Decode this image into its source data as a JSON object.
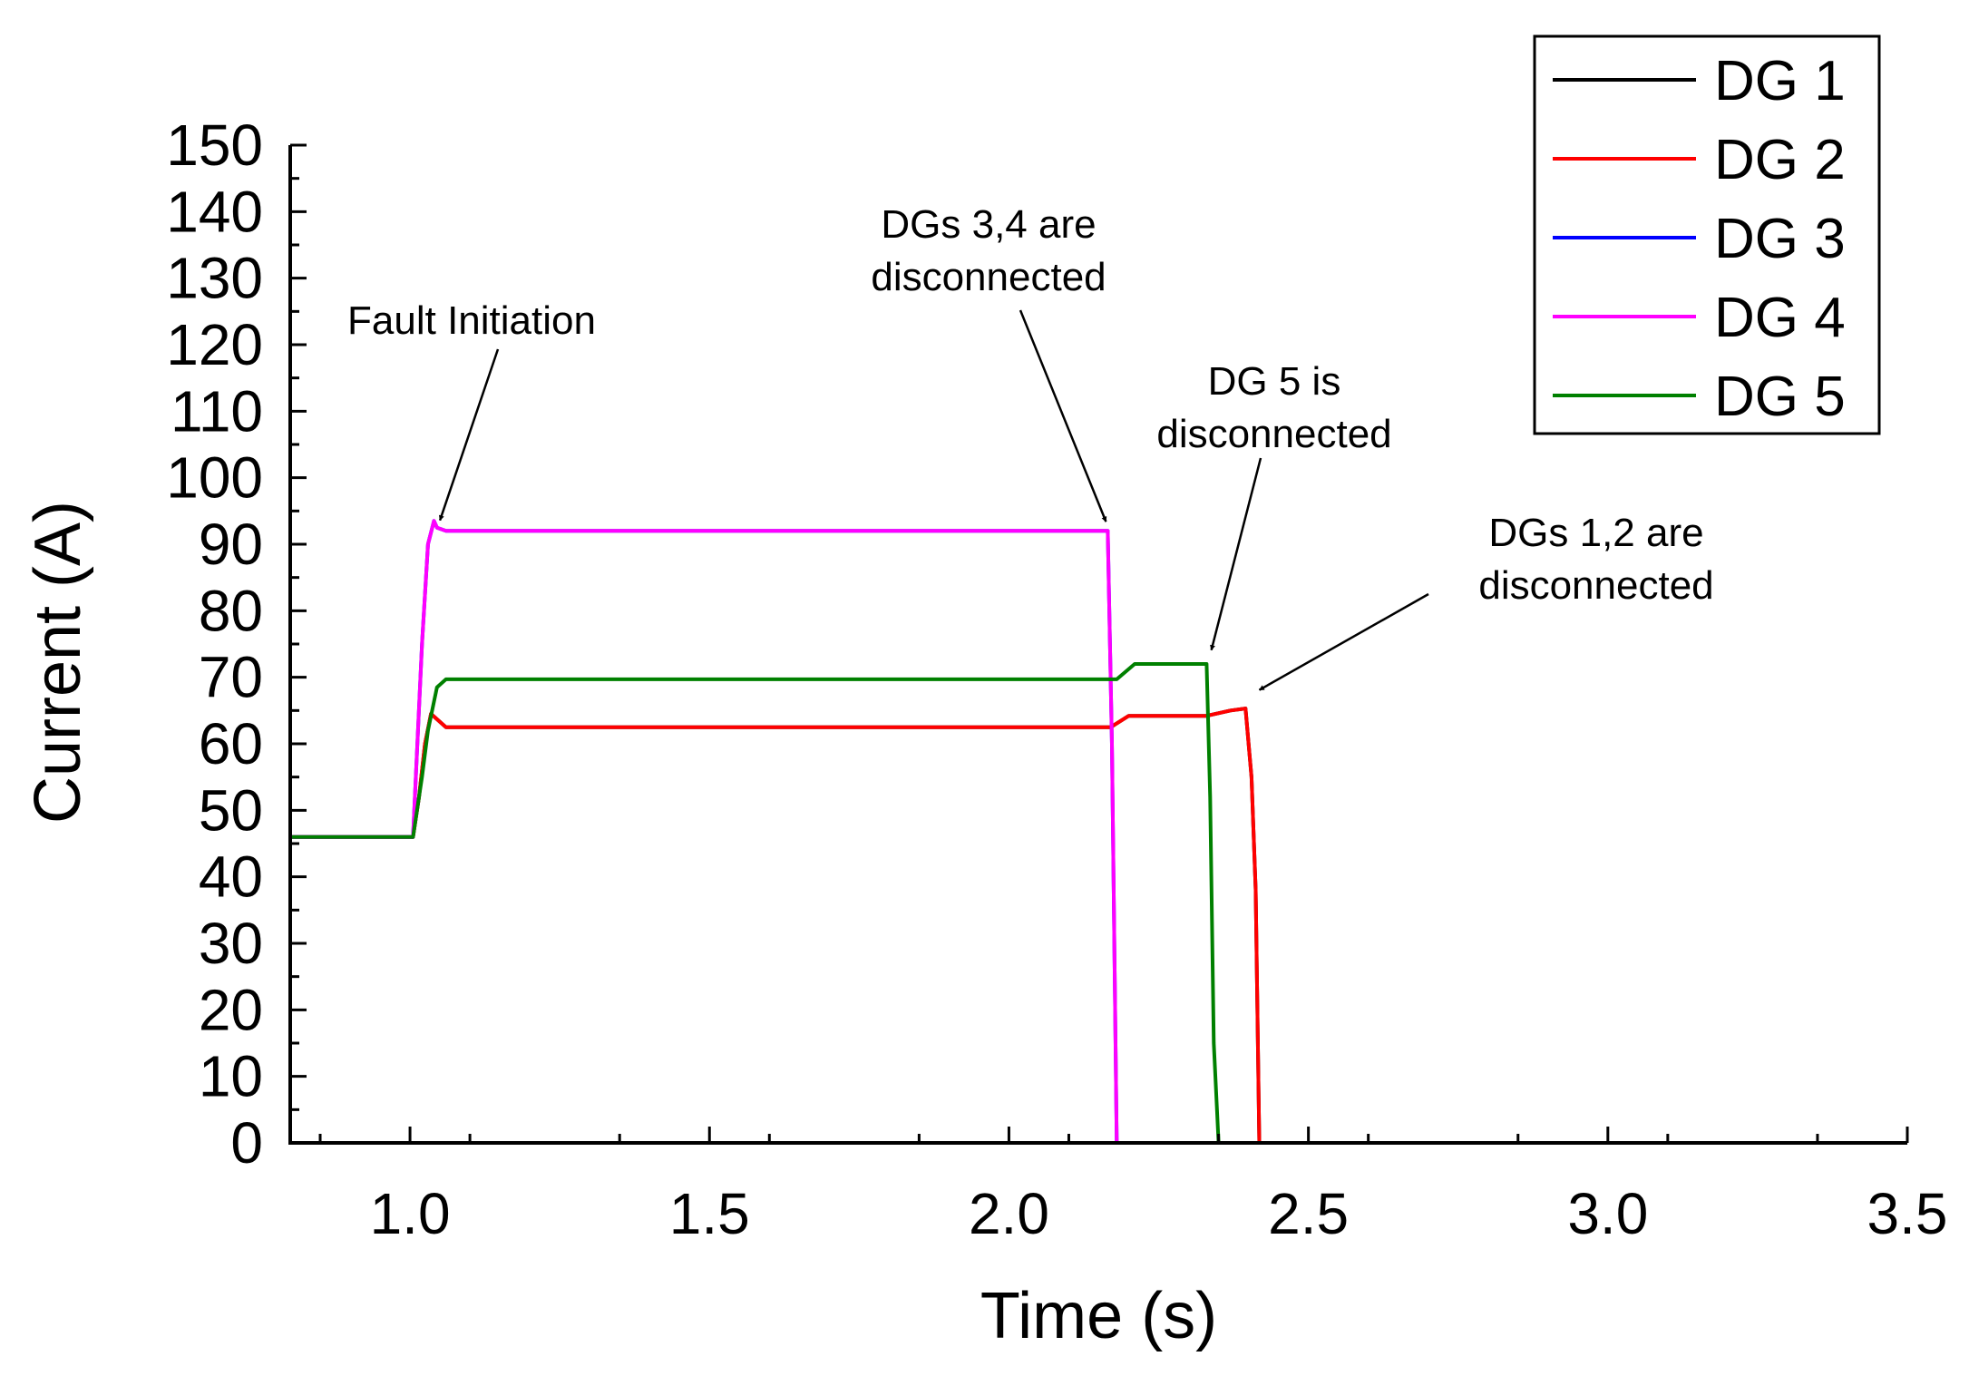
{
  "chart_data": {
    "type": "line",
    "title": "",
    "xlabel": "Time (s)",
    "ylabel": "Current (A)",
    "xlim": [
      0.8,
      3.5
    ],
    "ylim": [
      0,
      150
    ],
    "x_ticks": [
      1.0,
      1.5,
      2.0,
      2.5,
      3.0,
      3.5
    ],
    "x_tick_labels": [
      "1.0",
      "1.5",
      "2.0",
      "2.5",
      "3.0",
      "3.5"
    ],
    "y_ticks": [
      0,
      10,
      20,
      30,
      40,
      50,
      60,
      70,
      80,
      90,
      100,
      110,
      120,
      130,
      140,
      150
    ],
    "y_tick_labels": [
      "0",
      "10",
      "20",
      "30",
      "40",
      "50",
      "60",
      "70",
      "80",
      "90",
      "100",
      "110",
      "120",
      "130",
      "140",
      "150"
    ],
    "grid": false,
    "legend_position": "top-right",
    "series": [
      {
        "name": "DG 1",
        "color": "#000000",
        "x": [
          0.8,
          1.005,
          1.015,
          1.025,
          1.035,
          1.06,
          2.17,
          2.2,
          2.33,
          2.37,
          2.395,
          2.405,
          2.412,
          2.418,
          2.42
        ],
        "y": [
          46,
          46,
          52,
          60,
          64.5,
          62.5,
          62.5,
          64.2,
          64.2,
          65,
          65.3,
          55,
          38,
          0,
          0
        ]
      },
      {
        "name": "DG 2",
        "color": "#ff0000",
        "x": [
          0.8,
          1.005,
          1.015,
          1.025,
          1.035,
          1.06,
          2.17,
          2.2,
          2.33,
          2.37,
          2.395,
          2.405,
          2.412,
          2.418,
          2.6
        ],
        "y": [
          46,
          46,
          52,
          60,
          64.5,
          62.5,
          62.5,
          64.2,
          64.2,
          65,
          65.3,
          55,
          38,
          0,
          0
        ]
      },
      {
        "name": "DG 3",
        "color": "#0000ff",
        "x": [
          0.8,
          1.005,
          1.02,
          1.03,
          1.04,
          1.045,
          1.06,
          2.165,
          2.172,
          2.18,
          2.6
        ],
        "y": [
          46,
          46,
          75,
          90,
          93.5,
          92.5,
          92,
          92,
          60,
          0,
          0
        ]
      },
      {
        "name": "DG 4",
        "color": "#ff00ff",
        "x": [
          0.8,
          1.005,
          1.02,
          1.03,
          1.04,
          1.045,
          1.06,
          2.165,
          2.172,
          2.18,
          2.6
        ],
        "y": [
          46,
          46,
          75,
          90,
          93.5,
          92.5,
          92,
          92,
          60,
          0,
          0
        ]
      },
      {
        "name": "DG 5",
        "color": "#008000",
        "x": [
          0.8,
          1.005,
          1.02,
          1.03,
          1.045,
          1.06,
          2.18,
          2.21,
          2.33,
          2.336,
          2.342,
          2.35,
          2.6
        ],
        "y": [
          46,
          46,
          55,
          62,
          68.5,
          69.7,
          69.7,
          72,
          72,
          52,
          15,
          0,
          0
        ]
      }
    ],
    "annotations": [
      {
        "lines": [
          "Fault Initiation"
        ],
        "target": [
          1.05,
          92.5
        ]
      },
      {
        "lines": [
          "DGs 3,4 are",
          "disconnected"
        ],
        "target": [
          2.162,
          92.3
        ]
      },
      {
        "lines": [
          "DG 5 is",
          "disconnected"
        ],
        "target": [
          2.338,
          73
        ]
      },
      {
        "lines": [
          "DGs 1,2 are",
          "disconnected"
        ],
        "target": [
          2.418,
          67
        ]
      }
    ]
  }
}
